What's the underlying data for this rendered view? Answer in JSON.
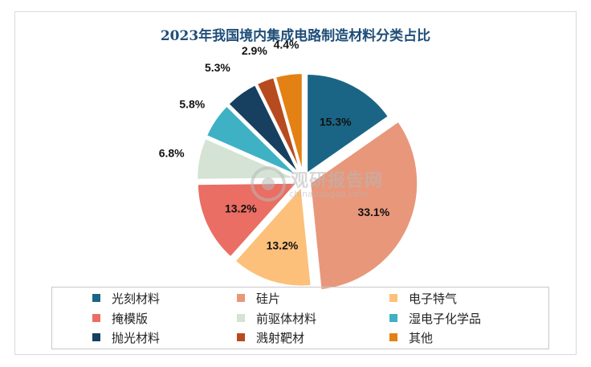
{
  "chart_data": {
    "type": "pie",
    "title": "2023年我国境内集成电路制造材料分类占比",
    "categories": [
      "光刻材料",
      "硅片",
      "电子特气",
      "掩模版",
      "前驱体材料",
      "湿电子化学品",
      "抛光材料",
      "溅射靶材",
      "其他"
    ],
    "values": [
      15.3,
      33.1,
      13.2,
      13.2,
      6.8,
      5.8,
      5.3,
      2.9,
      4.4
    ],
    "value_labels": [
      "15.3%",
      "33.1%",
      "13.2%",
      "13.2%",
      "6.8%",
      "5.8%",
      "5.3%",
      "2.9%",
      "4.4%"
    ],
    "colors": [
      "#1a6585",
      "#e8977b",
      "#fcc07a",
      "#ea6e63",
      "#d4e3d4",
      "#3fb1c5",
      "#173f5f",
      "#b84a1f",
      "#e38114"
    ],
    "legend": "bottom",
    "exploded": true
  },
  "watermark": {
    "text": "观研报告网",
    "url": "chinabaogao.com"
  }
}
